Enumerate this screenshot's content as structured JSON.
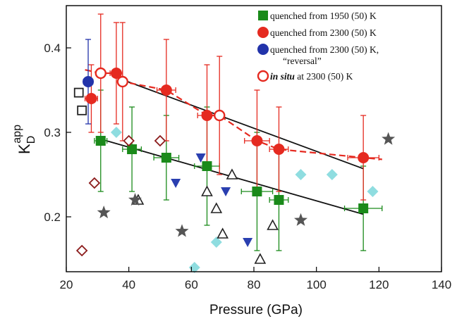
{
  "chart_data": {
    "type": "scatter",
    "title": "",
    "xlabel": "Pressure (GPa)",
    "ylabel": "K",
    "ylabel_sub": "D",
    "ylabel_sup": "app",
    "xlim": [
      20,
      140
    ],
    "ylim": [
      0.135,
      0.45
    ],
    "xticks": [
      20,
      40,
      60,
      80,
      100,
      120,
      140
    ],
    "yticks": [
      0.2,
      0.3,
      0.4
    ],
    "grid": false,
    "legend": {
      "placement": "top-right",
      "entries": [
        {
          "marker": "square",
          "color": "#1a8a1a",
          "text": "quenched from 1950 (50) K"
        },
        {
          "marker": "circle",
          "color": "#e52a20",
          "text": "quenched from 2300 (50) K"
        },
        {
          "marker": "circle",
          "color": "#2233aa",
          "text": "quenched from 2300 (50) K,",
          "text2": "“reversal”"
        },
        {
          "marker": "open-circle",
          "color": "#e52a20",
          "text_italic": "in situ",
          "text": " at 2300 (50) K"
        }
      ]
    },
    "series": [
      {
        "name": "quenched from 1950 (50) K",
        "marker": "square",
        "color": "#1a8a1a",
        "points": [
          {
            "x": 31,
            "y": 0.29,
            "xerr": 2,
            "yerr": 0.06
          },
          {
            "x": 41,
            "y": 0.28,
            "xerr": 3,
            "yerr": 0.05
          },
          {
            "x": 52,
            "y": 0.27,
            "xerr": 4,
            "yerr": 0.05
          },
          {
            "x": 65,
            "y": 0.26,
            "xerr": 4,
            "yerr": 0.07
          },
          {
            "x": 81,
            "y": 0.23,
            "xerr": 5,
            "yerr": 0.07
          },
          {
            "x": 88,
            "y": 0.22,
            "xerr": 3,
            "yerr": 0.06
          },
          {
            "x": 115,
            "y": 0.21,
            "xerr": 6,
            "yerr": 0.05
          }
        ]
      },
      {
        "name": "quenched from 2300 (50) K",
        "marker": "circle",
        "color": "#e52a20",
        "points": [
          {
            "x": 28,
            "y": 0.34,
            "xerr": 2,
            "yerr": 0.04
          },
          {
            "x": 36,
            "y": 0.37,
            "xerr": 2,
            "yerr": 0.06
          },
          {
            "x": 52,
            "y": 0.35,
            "xerr": 3,
            "yerr": 0.06
          },
          {
            "x": 65,
            "y": 0.32,
            "xerr": 3,
            "yerr": 0.06
          },
          {
            "x": 81,
            "y": 0.29,
            "xerr": 4,
            "yerr": 0.06
          },
          {
            "x": 88,
            "y": 0.28,
            "xerr": 3,
            "yerr": 0.05
          },
          {
            "x": 115,
            "y": 0.27,
            "xerr": 5,
            "yerr": 0.05
          }
        ]
      },
      {
        "name": "quenched from 2300 (50) K, “reversal”",
        "marker": "circle",
        "color": "#2233aa",
        "points": [
          {
            "x": 27,
            "y": 0.36,
            "xerr": 1.5,
            "yerr": 0.05
          }
        ]
      },
      {
        "name": "in situ at 2300 (50) K",
        "marker": "open-circle",
        "color": "#e52a20",
        "points": [
          {
            "x": 31,
            "y": 0.37,
            "xerr": 0,
            "yerr": 0.07
          },
          {
            "x": 38,
            "y": 0.36,
            "xerr": 0,
            "yerr": 0.07
          },
          {
            "x": 69,
            "y": 0.32,
            "xerr": 0,
            "yerr": 0.07
          }
        ]
      },
      {
        "marker": "open-square",
        "color": "#222222",
        "points": [
          {
            "x": 24,
            "y": 0.347
          },
          {
            "x": 25,
            "y": 0.326
          }
        ]
      },
      {
        "marker": "open-diamond",
        "color": "#8b1a1a",
        "points": [
          {
            "x": 25,
            "y": 0.16
          },
          {
            "x": 29,
            "y": 0.24
          },
          {
            "x": 40,
            "y": 0.29
          },
          {
            "x": 50,
            "y": 0.29
          }
        ]
      },
      {
        "marker": "diamond",
        "color": "#8fdde0",
        "points": [
          {
            "x": 36,
            "y": 0.3
          },
          {
            "x": 61,
            "y": 0.14
          },
          {
            "x": 68,
            "y": 0.17
          },
          {
            "x": 95,
            "y": 0.25
          },
          {
            "x": 105,
            "y": 0.25
          },
          {
            "x": 118,
            "y": 0.23
          }
        ]
      },
      {
        "marker": "triangle-down",
        "color": "#2a3fb0",
        "points": [
          {
            "x": 55,
            "y": 0.24
          },
          {
            "x": 63,
            "y": 0.27
          },
          {
            "x": 71,
            "y": 0.23
          },
          {
            "x": 78,
            "y": 0.17
          }
        ]
      },
      {
        "marker": "open-triangle",
        "color": "#222222",
        "points": [
          {
            "x": 43,
            "y": 0.22
          },
          {
            "x": 65,
            "y": 0.23
          },
          {
            "x": 68,
            "y": 0.21
          },
          {
            "x": 70,
            "y": 0.18
          },
          {
            "x": 73,
            "y": 0.25
          },
          {
            "x": 82,
            "y": 0.15
          },
          {
            "x": 86,
            "y": 0.19
          }
        ]
      },
      {
        "marker": "star",
        "color": "#555555",
        "points": [
          {
            "x": 32,
            "y": 0.205
          },
          {
            "x": 42,
            "y": 0.22
          },
          {
            "x": 57,
            "y": 0.183
          },
          {
            "x": 95,
            "y": 0.196
          },
          {
            "x": 123,
            "y": 0.292
          }
        ]
      }
    ],
    "fit_lines": [
      {
        "color": "#111111",
        "style": "solid",
        "x": [
          31,
          115
        ],
        "y": [
          0.292,
          0.203
        ]
      },
      {
        "color": "#111111",
        "style": "solid",
        "x": [
          36,
          115
        ],
        "y": [
          0.365,
          0.257
        ]
      },
      {
        "color": "#e52a20",
        "style": "dashed",
        "x": [
          26,
          31,
          36,
          38,
          52,
          65,
          69,
          81,
          88,
          115,
          121
        ],
        "y": [
          0.374,
          0.37,
          0.37,
          0.36,
          0.35,
          0.32,
          0.32,
          0.29,
          0.28,
          0.27,
          0.268
        ]
      }
    ]
  }
}
